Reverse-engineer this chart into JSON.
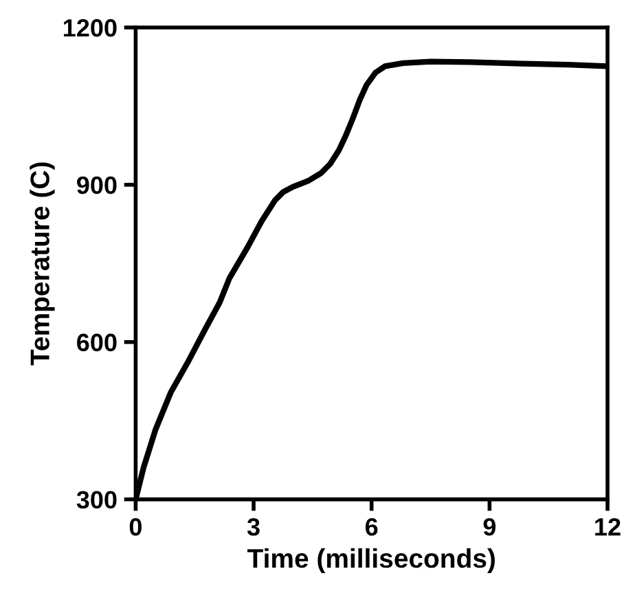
{
  "chart_data": {
    "type": "line",
    "xlabel": "Time (milliseconds)",
    "ylabel": "Temperature (C)",
    "xlim": [
      0,
      12
    ],
    "xticks": [
      0,
      3,
      6,
      9,
      12
    ],
    "ylim": [
      300,
      1200
    ],
    "yticks": [
      300,
      600,
      900,
      1200
    ],
    "grid": false,
    "marker": "none",
    "line_style": "solid",
    "series": [
      {
        "color": "#000000",
        "x": [
          0,
          0.2,
          0.5,
          0.9,
          1.33,
          1.75,
          2.14,
          2.38,
          2.84,
          3.2,
          3.54,
          3.75,
          4.0,
          4.4,
          4.71,
          4.95,
          5.17,
          5.35,
          5.52,
          5.7,
          5.87,
          6.1,
          6.34,
          6.8,
          7.5,
          8.5,
          9.84,
          11,
          12
        ],
        "values": [
          300,
          360,
          432,
          505,
          562,
          622,
          676,
          721,
          780,
          830,
          870,
          886,
          896,
          908,
          922,
          940,
          966,
          995,
          1026,
          1062,
          1090,
          1114,
          1126,
          1132,
          1135,
          1134,
          1131,
          1129,
          1126
        ]
      }
    ]
  }
}
